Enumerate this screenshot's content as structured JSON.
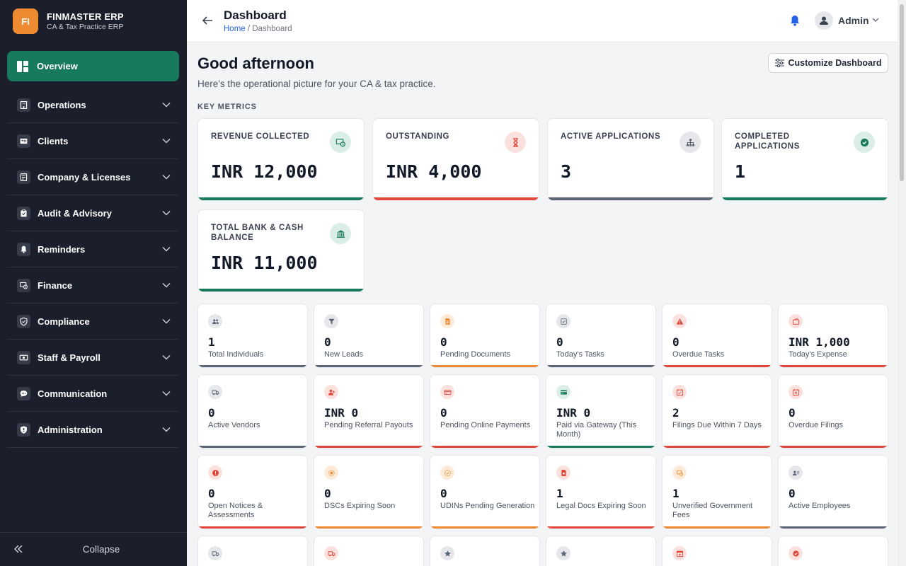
{
  "brand": {
    "logo": "FI",
    "name": "FINMASTER ERP",
    "subtitle": "CA & Tax Practice ERP"
  },
  "sidebar": {
    "overview_label": "Overview",
    "items": [
      {
        "label": "Operations",
        "icon": "building-icon"
      },
      {
        "label": "Clients",
        "icon": "id-card-icon"
      },
      {
        "label": "Company & Licenses",
        "icon": "license-icon"
      },
      {
        "label": "Audit & Advisory",
        "icon": "clipboard-icon"
      },
      {
        "label": "Reminders",
        "icon": "bell-icon"
      },
      {
        "label": "Finance",
        "icon": "money-icon"
      },
      {
        "label": "Compliance",
        "icon": "shield-check-icon"
      },
      {
        "label": "Staff & Payroll",
        "icon": "cash-icon"
      },
      {
        "label": "Communication",
        "icon": "chat-icon"
      },
      {
        "label": "Administration",
        "icon": "shield-icon"
      }
    ],
    "collapse_label": "Collapse"
  },
  "header": {
    "title": "Dashboard",
    "breadcrumb_home": "Home",
    "breadcrumb_sep": " / ",
    "breadcrumb_current": "Dashboard",
    "user": "Admin"
  },
  "main": {
    "greeting": "Good afternoon",
    "subtitle": "Here's the operational picture for your CA & tax practice.",
    "customize_label": "Customize Dashboard",
    "section_label": "KEY METRICS"
  },
  "key_metrics": [
    {
      "label": "REVENUE COLLECTED",
      "value": "INR 12,000",
      "icon": "money-check-icon",
      "color": "#177a5c",
      "iconbg": "#dbeee6"
    },
    {
      "label": "OUTSTANDING",
      "value": "INR 4,000",
      "icon": "hourglass-icon",
      "color": "#e0473a",
      "iconbg": "#fbe1dd"
    },
    {
      "label": "ACTIVE APPLICATIONS",
      "value": "3",
      "icon": "sitemap-icon",
      "color": "#5b6475",
      "iconbg": "#e5e7eb"
    },
    {
      "label": "COMPLETED APPLICATIONS",
      "value": "1",
      "icon": "check-circle-icon",
      "color": "#177a5c",
      "iconbg": "#dbeee6"
    },
    {
      "label": "TOTAL BANK & CASH BALANCE",
      "value": "INR 11,000",
      "icon": "bank-icon",
      "color": "#177a5c",
      "iconbg": "#dbeee6"
    }
  ],
  "stats": [
    {
      "value": "1",
      "label": "Total Individuals",
      "icon": "users-icon",
      "color": "#5b6475",
      "iconbg": "#e5e7eb"
    },
    {
      "value": "0",
      "label": "New Leads",
      "icon": "filter-icon",
      "color": "#5b6475",
      "iconbg": "#e5e7eb"
    },
    {
      "value": "0",
      "label": "Pending Documents",
      "icon": "document-icon",
      "color": "#ee8a32",
      "iconbg": "#fdebd9"
    },
    {
      "value": "0",
      "label": "Today's Tasks",
      "icon": "checkbox-icon",
      "color": "#5b6475",
      "iconbg": "#e5e7eb"
    },
    {
      "value": "0",
      "label": "Overdue Tasks",
      "icon": "warning-icon",
      "color": "#e0473a",
      "iconbg": "#fbe1dd"
    },
    {
      "value": "INR 1,000",
      "label": "Today's Expense",
      "icon": "wallet-icon",
      "color": "#e0473a",
      "iconbg": "#fbe1dd"
    },
    {
      "value": "0",
      "label": "Active Vendors",
      "icon": "truck-icon",
      "color": "#5b6475",
      "iconbg": "#e5e7eb"
    },
    {
      "value": "INR 0",
      "label": "Pending Referral Payouts",
      "icon": "user-plus-icon",
      "color": "#e0473a",
      "iconbg": "#fbe1dd"
    },
    {
      "value": "0",
      "label": "Pending Online Payments",
      "icon": "credit-card-icon",
      "color": "#e0473a",
      "iconbg": "#fbe1dd"
    },
    {
      "value": "INR 0",
      "label": "Paid via Gateway (This Month)",
      "icon": "card-icon",
      "color": "#177a5c",
      "iconbg": "#dbeee6"
    },
    {
      "value": "2",
      "label": "Filings Due Within 7 Days",
      "icon": "calendar-check-icon",
      "color": "#e0473a",
      "iconbg": "#fbe1dd"
    },
    {
      "value": "0",
      "label": "Overdue Filings",
      "icon": "calendar-x-icon",
      "color": "#e0473a",
      "iconbg": "#fbe1dd"
    },
    {
      "value": "0",
      "label": "Open Notices & Assessments",
      "icon": "alert-icon",
      "color": "#e0473a",
      "iconbg": "#fbe1dd"
    },
    {
      "value": "0",
      "label": "DSCs Expiring Soon",
      "icon": "certificate-icon",
      "color": "#ee8a32",
      "iconbg": "#fdebd9"
    },
    {
      "value": "0",
      "label": "UDINs Pending Generation",
      "icon": "badge-check-icon",
      "color": "#ee8a32",
      "iconbg": "#fdebd9"
    },
    {
      "value": "1",
      "label": "Legal Docs Expiring Soon",
      "icon": "file-icon",
      "color": "#e0473a",
      "iconbg": "#fbe1dd"
    },
    {
      "value": "1",
      "label": "Unverified Government Fees",
      "icon": "receipt-icon",
      "color": "#ee8a32",
      "iconbg": "#fdebd9"
    },
    {
      "value": "0",
      "label": "Active Employees",
      "icon": "id-badge-icon",
      "color": "#5b6475",
      "iconbg": "#e5e7eb"
    },
    {
      "value": "",
      "label": "",
      "icon": "truck-icon",
      "color": "#5b6475",
      "iconbg": "#e5e7eb"
    },
    {
      "value": "",
      "label": "",
      "icon": "truck-icon",
      "color": "#e0473a",
      "iconbg": "#fbe1dd"
    },
    {
      "value": "",
      "label": "",
      "icon": "star-icon",
      "color": "#5b6475",
      "iconbg": "#e5e7eb"
    },
    {
      "value": "",
      "label": "",
      "icon": "star-icon",
      "color": "#5b6475",
      "iconbg": "#e5e7eb"
    },
    {
      "value": "",
      "label": "",
      "icon": "calendar-icon",
      "color": "#e0473a",
      "iconbg": "#fbe1dd"
    },
    {
      "value": "",
      "label": "",
      "icon": "check-circle-icon",
      "color": "#e0473a",
      "iconbg": "#fbe1dd"
    }
  ]
}
